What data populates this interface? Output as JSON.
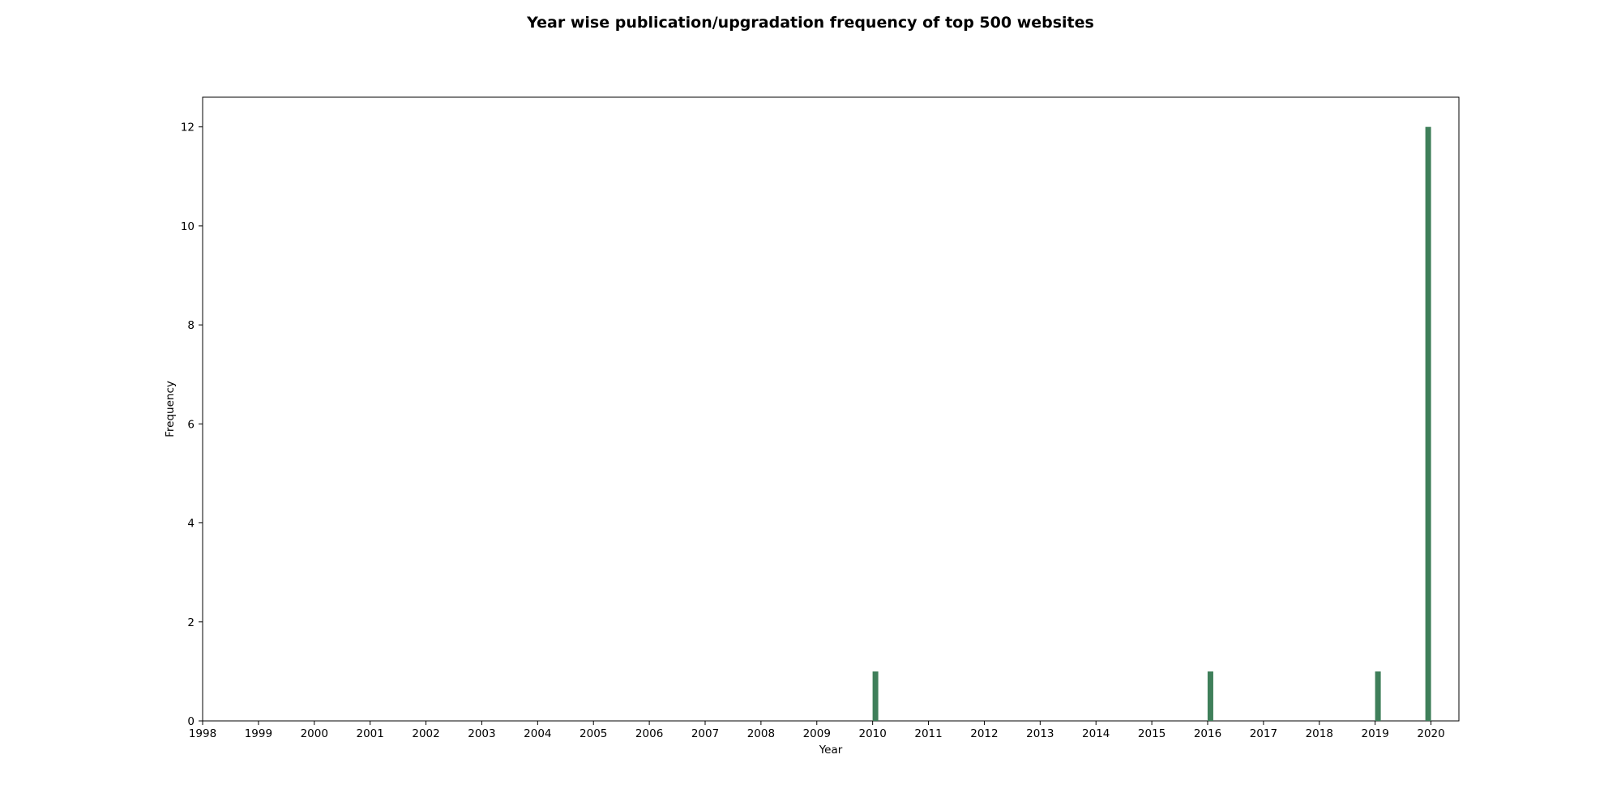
{
  "chart_data": {
    "type": "bar",
    "title": "Year wise publication/upgradation frequency of top 500 websites",
    "xlabel": "Year",
    "ylabel": "Frequency",
    "x_ticks": [
      "1998",
      "1999",
      "2000",
      "2001",
      "2002",
      "2003",
      "2004",
      "2005",
      "2006",
      "2007",
      "2008",
      "2009",
      "2010",
      "2011",
      "2012",
      "2013",
      "2014",
      "2015",
      "2016",
      "2017",
      "2018",
      "2019",
      "2020"
    ],
    "y_ticks": [
      "0",
      "2",
      "4",
      "6",
      "8",
      "10",
      "12"
    ],
    "xlim": [
      1998,
      2020.5
    ],
    "ylim": [
      0,
      12.6
    ],
    "bars": [
      {
        "x": 2010.05,
        "value": 1
      },
      {
        "x": 2016.05,
        "value": 1
      },
      {
        "x": 2019.05,
        "value": 1
      },
      {
        "x": 2019.95,
        "value": 12
      }
    ],
    "bar_color": "#3f7f5a",
    "grid": false,
    "legend": "none"
  }
}
